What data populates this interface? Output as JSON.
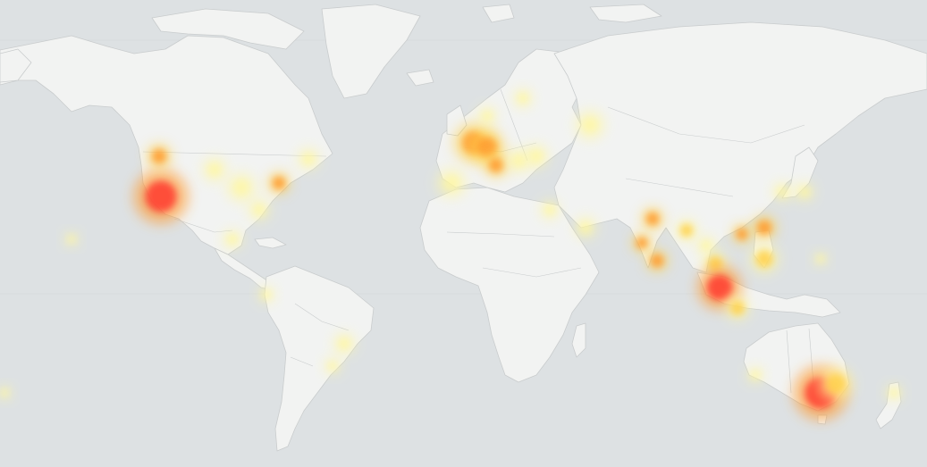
{
  "map": {
    "background_color": "#dde1e3",
    "land_color": "#f2f3f2",
    "border_color": "#c9cccd",
    "heat_gradient": [
      "#fff7a0",
      "#ffd24d",
      "#ff9a2e",
      "#ff3b2f"
    ],
    "heat_levels": [
      0.12,
      0.3,
      0.55,
      0.85
    ]
  }
}
